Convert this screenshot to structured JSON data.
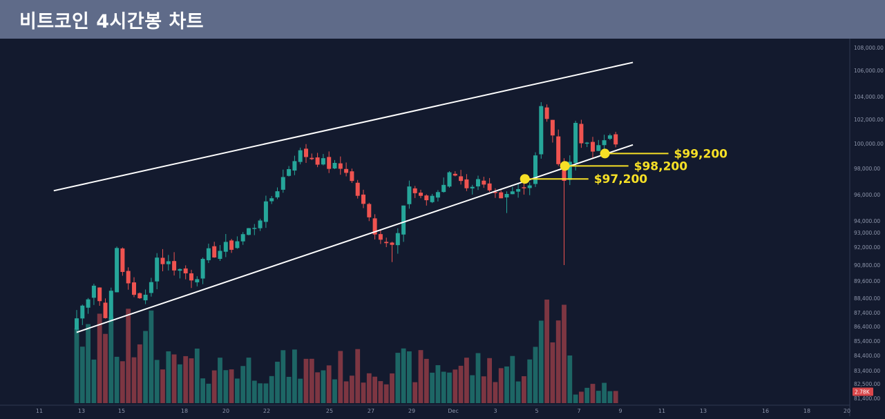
{
  "header": {
    "title": "비트코인 4시간봉 차트"
  },
  "colors": {
    "background": "#131a2e",
    "up": "#26a69a",
    "down": "#ef5350",
    "up_volume": "#1f6f6c",
    "down_volume": "#8a3a45",
    "trendline": "#ffffff",
    "marker": "#f7e026"
  },
  "chart_data": {
    "type": "candlestick",
    "title": "비트코인 4시간봉 차트",
    "timeframe": "4h",
    "y_axis": {
      "position": "right",
      "ticks": [
        108000,
        106000,
        104000,
        102000,
        100000,
        98000,
        96000,
        94000,
        93000,
        92000,
        90800,
        89600,
        88400,
        87400,
        86400,
        85400,
        84400,
        83400,
        82500,
        81400
      ],
      "tick_labels": [
        "108,000.00",
        "106,000.00",
        "104,000.00",
        "102,000.00",
        "100,000.00",
        "98,000.00",
        "96,000.00",
        "94,000.00",
        "93,000.00",
        "92,000.00",
        "90,800.00",
        "89,600.00",
        "88,400.00",
        "87,400.00",
        "86,400.00",
        "85,400.00",
        "84,400.00",
        "83,400.00",
        "82,500.00",
        "81,400.00"
      ],
      "volume_badge": "2.78K"
    },
    "x_axis": {
      "tick_labels": [
        "11",
        "13",
        "15",
        "18",
        "20",
        "22",
        "25",
        "27",
        "29",
        "Dec",
        "3",
        "5",
        "7",
        "9",
        "11",
        "13",
        "16",
        "18",
        "20"
      ]
    },
    "anchors": [
      {
        "x": 0.0,
        "close": 87000
      },
      {
        "x": 3.0,
        "close": 89500
      },
      {
        "x": 5.0,
        "close": 87000
      },
      {
        "x": 7.0,
        "close": 91600
      },
      {
        "x": 8.0,
        "close": 90200
      },
      {
        "x": 11.5,
        "close": 87800
      },
      {
        "x": 14.0,
        "close": 91300
      },
      {
        "x": 17.0,
        "close": 90700
      },
      {
        "x": 20.5,
        "close": 89800
      },
      {
        "x": 23.0,
        "close": 91500
      },
      {
        "x": 27.0,
        "close": 92100
      },
      {
        "x": 31.0,
        "close": 93600
      },
      {
        "x": 35.0,
        "close": 96500
      },
      {
        "x": 38.5,
        "close": 99300
      },
      {
        "x": 41.5,
        "close": 98800
      },
      {
        "x": 44.0,
        "close": 98200
      },
      {
        "x": 47.0,
        "close": 97900
      },
      {
        "x": 49.0,
        "close": 96000
      },
      {
        "x": 52.0,
        "close": 93200
      },
      {
        "x": 54.5,
        "close": 92100
      },
      {
        "x": 56.5,
        "close": 93800
      },
      {
        "x": 57.5,
        "close": 96700
      },
      {
        "x": 60.0,
        "close": 95500
      },
      {
        "x": 63.0,
        "close": 96200
      },
      {
        "x": 65.5,
        "close": 97700
      },
      {
        "x": 68.0,
        "close": 96700
      },
      {
        "x": 71.0,
        "close": 97100
      },
      {
        "x": 74.0,
        "close": 95400
      },
      {
        "x": 77.0,
        "close": 96100
      },
      {
        "x": 79.5,
        "close": 96700
      },
      {
        "x": 81.0,
        "close": 103600
      },
      {
        "x": 83.0,
        "close": 100800
      },
      {
        "x": 84.5,
        "close": 97500
      },
      {
        "x": 85.5,
        "close": 96800
      },
      {
        "x": 87.0,
        "close": 101500
      },
      {
        "x": 88.5,
        "close": 99600
      },
      {
        "x": 90.0,
        "close": 99800
      },
      {
        "x": 92.0,
        "close": 100200
      },
      {
        "x": 93.5,
        "close": 101000
      },
      {
        "x": 94.0,
        "close": 100300
      }
    ],
    "candle_count": 95,
    "long_wicks": [
      {
        "index": 85,
        "low": 90800
      },
      {
        "index": 55,
        "low": 91000
      },
      {
        "index": 75,
        "low": 94600
      }
    ],
    "volume_peak": 2780,
    "trendlines": [
      {
        "name": "upper-channel-line",
        "from": {
          "x": -4,
          "y": 96300
        },
        "to": {
          "x": 97,
          "y": 106700
        }
      },
      {
        "name": "lower-channel-line",
        "from": {
          "x": 0,
          "y": 86000
        },
        "to": {
          "x": 97,
          "y": 99900
        }
      }
    ],
    "levels": [
      {
        "label": "$99,200",
        "price": 99200
      },
      {
        "label": "$98,200",
        "price": 98200
      },
      {
        "label": "$97,200",
        "price": 97200
      }
    ]
  }
}
